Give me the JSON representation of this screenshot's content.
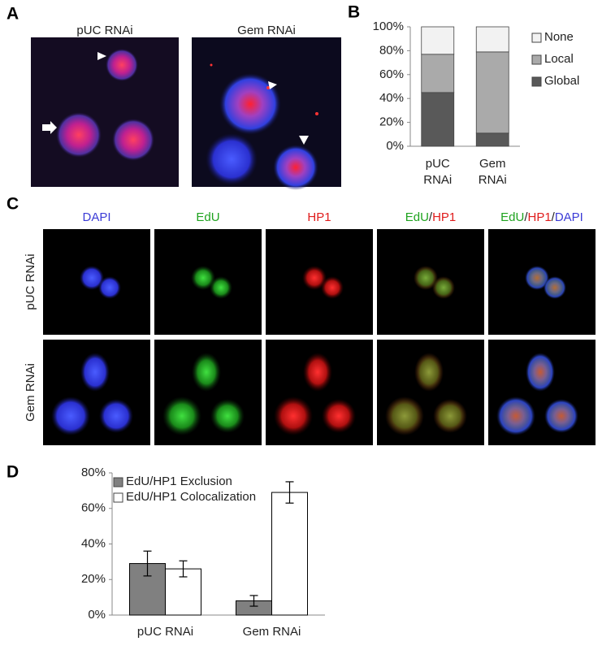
{
  "panel_labels": [
    "A",
    "B",
    "C",
    "D"
  ],
  "panel_a": {
    "image_titles": [
      "pUC RNAi",
      "Gem RNAi"
    ]
  },
  "panel_c": {
    "column_titles": [
      [
        {
          "text": "DAPI",
          "color": "#3b3bd6"
        }
      ],
      [
        {
          "text": "EdU",
          "color": "#1fa31f"
        }
      ],
      [
        {
          "text": "HP1",
          "color": "#e01b1b"
        }
      ],
      [
        {
          "text": "EdU",
          "color": "#1fa31f"
        },
        {
          "text": "/",
          "color": "#222222"
        },
        {
          "text": "HP1",
          "color": "#e01b1b"
        }
      ],
      [
        {
          "text": "EdU",
          "color": "#1fa31f"
        },
        {
          "text": "/",
          "color": "#222222"
        },
        {
          "text": "HP1",
          "color": "#e01b1b"
        },
        {
          "text": "/",
          "color": "#222222"
        },
        {
          "text": "DAPI",
          "color": "#3b3bd6"
        }
      ]
    ],
    "row_titles": [
      "pUC RNAi",
      "Gem RNAi"
    ]
  },
  "chart_data": [
    {
      "type": "bar",
      "stacked": true,
      "categories": [
        "pUC RNAi",
        "Gem RNAi"
      ],
      "series": [
        {
          "name": "Global",
          "color": "#595959",
          "values": [
            45,
            11
          ]
        },
        {
          "name": "Local",
          "color": "#aaaaaa",
          "values": [
            32,
            68
          ]
        },
        {
          "name": "None",
          "color": "#f2f2f2",
          "values": [
            23,
            21
          ]
        }
      ],
      "ylim": [
        0,
        100
      ],
      "yticks": [
        {
          "value": 0,
          "label": "0%"
        },
        {
          "value": 20,
          "label": "20%"
        },
        {
          "value": 40,
          "label": "40%"
        },
        {
          "value": 60,
          "label": "60%"
        },
        {
          "value": 80,
          "label": "80%"
        },
        {
          "value": 100,
          "label": "100%"
        }
      ],
      "legend": "right"
    },
    {
      "type": "bar",
      "stacked": false,
      "categories": [
        "pUC RNAi",
        "Gem RNAi"
      ],
      "series": [
        {
          "name": "EdU/HP1 Exclusion",
          "color": "#808080",
          "values": [
            29,
            8
          ],
          "errors": [
            7,
            3
          ]
        },
        {
          "name": "EdU/HP1 Colocalization",
          "color": "#ffffff",
          "values": [
            26,
            69
          ],
          "errors": [
            4.5,
            6
          ]
        }
      ],
      "ylim": [
        0,
        80
      ],
      "yticks": [
        {
          "value": 0,
          "label": "0%"
        },
        {
          "value": 20,
          "label": "20%"
        },
        {
          "value": 40,
          "label": "40%"
        },
        {
          "value": 60,
          "label": "60%"
        },
        {
          "value": 80,
          "label": "80%"
        }
      ],
      "legend": "top-left"
    }
  ]
}
